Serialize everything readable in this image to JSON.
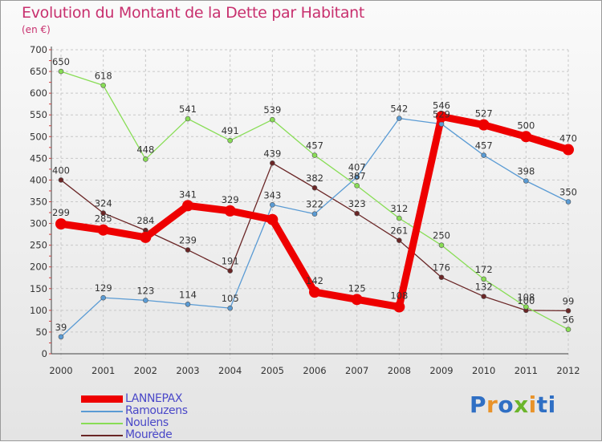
{
  "title": "Evolution du Montant de la Dette par Habitant",
  "unit": "(en €)",
  "logo": {
    "text": "Proxiti",
    "letter_colors": [
      "#2f6fc4",
      "#e9932a",
      "#2f6fc4",
      "#6bb52b",
      "#e9932a",
      "#2f6fc4"
    ]
  },
  "chart_data": {
    "type": "line",
    "title": "Evolution du Montant de la Dette par Habitant",
    "ylabel": "(en €)",
    "xlabel": "",
    "x": [
      "2000",
      "2001",
      "2002",
      "2003",
      "2004",
      "2005",
      "2006",
      "2007",
      "2008",
      "2009",
      "2010",
      "2011",
      "2012"
    ],
    "ylim": [
      0,
      700
    ],
    "yticks": [
      0,
      50,
      100,
      150,
      200,
      250,
      300,
      350,
      400,
      450,
      500,
      550,
      600,
      650,
      700
    ],
    "grid": true,
    "legend_position": "bottom-left",
    "series": [
      {
        "name": "LANNEPAX",
        "color": "#ee0000",
        "values": [
          299,
          285,
          268,
          341,
          329,
          309,
          142,
          125,
          108,
          546,
          527,
          500,
          470
        ],
        "labels": [
          "299",
          "285",
          "",
          "341",
          "329",
          "",
          "142",
          "125",
          "108",
          "546",
          "527",
          "500",
          "470"
        ]
      },
      {
        "name": "Ramouzens",
        "color": "#5a9bd4",
        "values": [
          39,
          129,
          123,
          114,
          105,
          343,
          322,
          407,
          542,
          529,
          457,
          398,
          350
        ],
        "labels": [
          "39",
          "129",
          "123",
          "114",
          "105",
          "343",
          "322",
          "407",
          "542",
          "529",
          "457",
          "398",
          "350"
        ]
      },
      {
        "name": "Noulens",
        "color": "#88dd55",
        "values": [
          650,
          618,
          448,
          541,
          491,
          539,
          457,
          387,
          312,
          250,
          172,
          108,
          56
        ],
        "labels": [
          "650",
          "618",
          "448",
          "541",
          "491",
          "539",
          "457",
          "387",
          "312",
          "250",
          "172",
          "108",
          "56"
        ]
      },
      {
        "name": "Mourède",
        "color": "#6a2626",
        "values": [
          400,
          324,
          284,
          239,
          191,
          439,
          382,
          323,
          261,
          176,
          132,
          100,
          99
        ],
        "labels": [
          "400",
          "324",
          "284",
          "239",
          "191",
          "439",
          "382",
          "323",
          "261",
          "176",
          "132",
          "100",
          "99"
        ]
      }
    ]
  }
}
